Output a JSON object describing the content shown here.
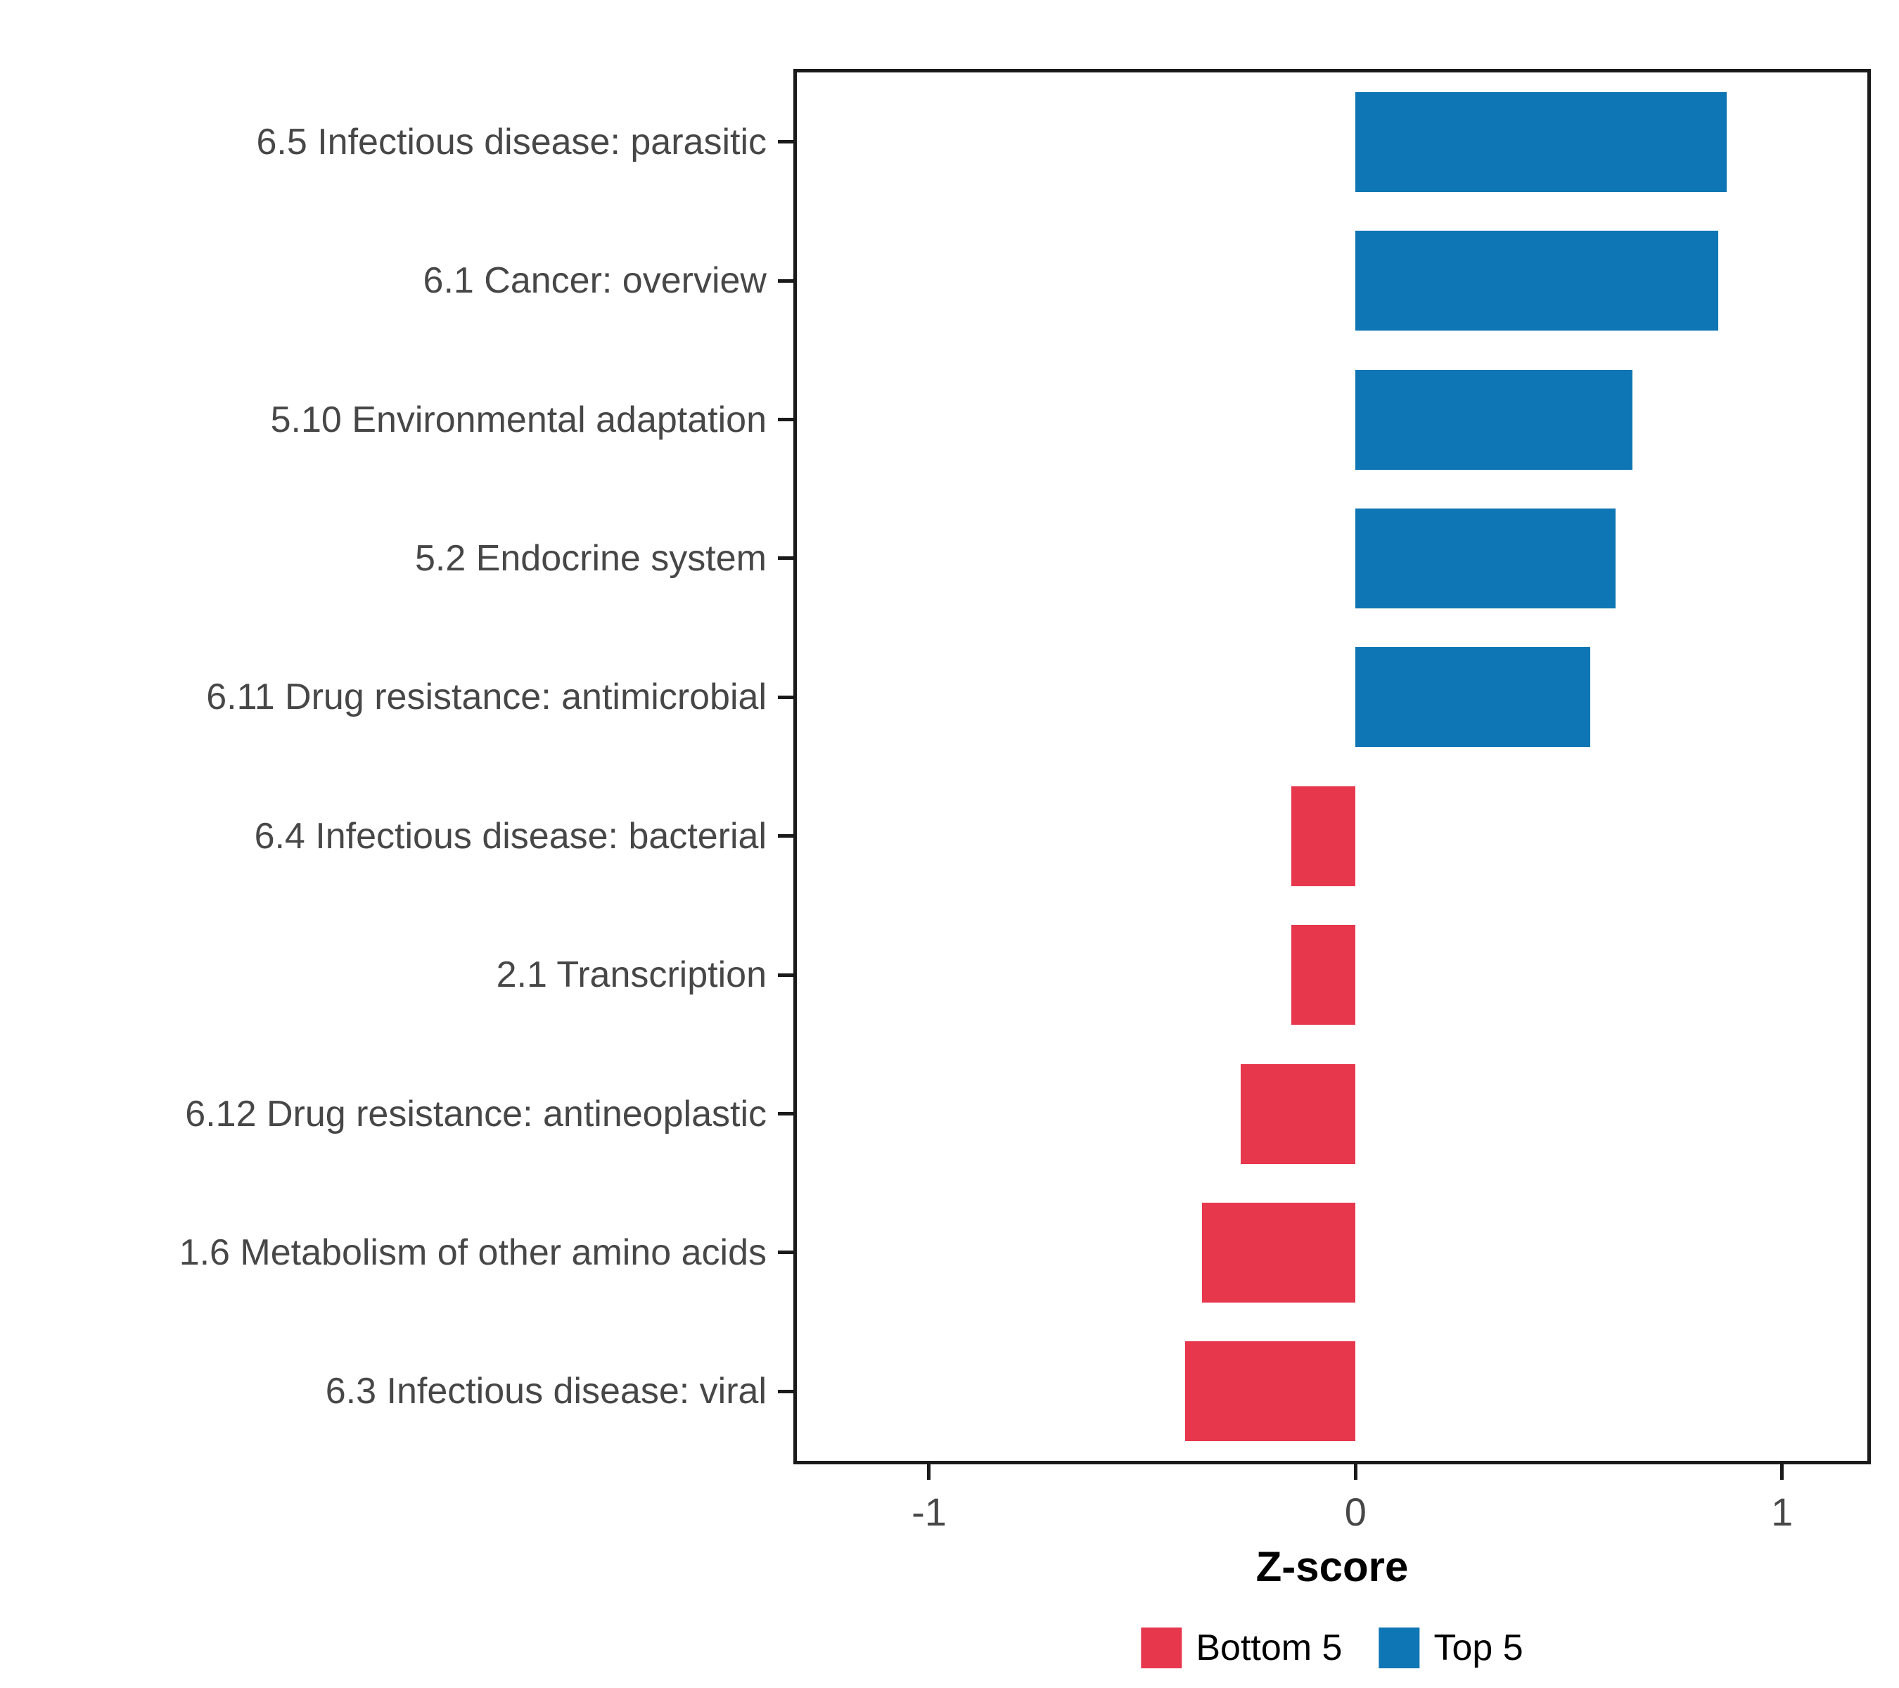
{
  "chart_data": {
    "type": "bar",
    "orientation": "horizontal",
    "title": "",
    "xlabel": "Z-score",
    "ylabel": "",
    "categories": [
      "6.5 Infectious disease: parasitic",
      "6.1 Cancer: overview",
      "5.10 Environmental adaptation",
      "5.2 Endocrine system",
      "6.11 Drug resistance: antimicrobial",
      "6.4 Infectious disease: bacterial",
      "2.1 Transcription",
      "6.12 Drug resistance: antineoplastic",
      "1.6 Metabolism of other amino acids",
      "6.3 Infectious disease: viral"
    ],
    "values": [
      0.87,
      0.85,
      0.65,
      0.61,
      0.55,
      -0.15,
      -0.15,
      -0.27,
      -0.36,
      -0.4
    ],
    "groups": [
      "Top 5",
      "Top 5",
      "Top 5",
      "Top 5",
      "Top 5",
      "Bottom 5",
      "Bottom 5",
      "Bottom 5",
      "Bottom 5",
      "Bottom 5"
    ],
    "colors": {
      "Bottom 5": "#E7374D",
      "Top 5": "#0E76B4"
    },
    "x_ticks": [
      -1,
      0,
      1
    ],
    "xlim": [
      -1.31,
      1.2
    ],
    "grid": false,
    "legend_position": "bottom",
    "legend": [
      {
        "label": "Bottom 5",
        "color": "#E7374D"
      },
      {
        "label": "Top 5",
        "color": "#0E76B4"
      }
    ]
  }
}
